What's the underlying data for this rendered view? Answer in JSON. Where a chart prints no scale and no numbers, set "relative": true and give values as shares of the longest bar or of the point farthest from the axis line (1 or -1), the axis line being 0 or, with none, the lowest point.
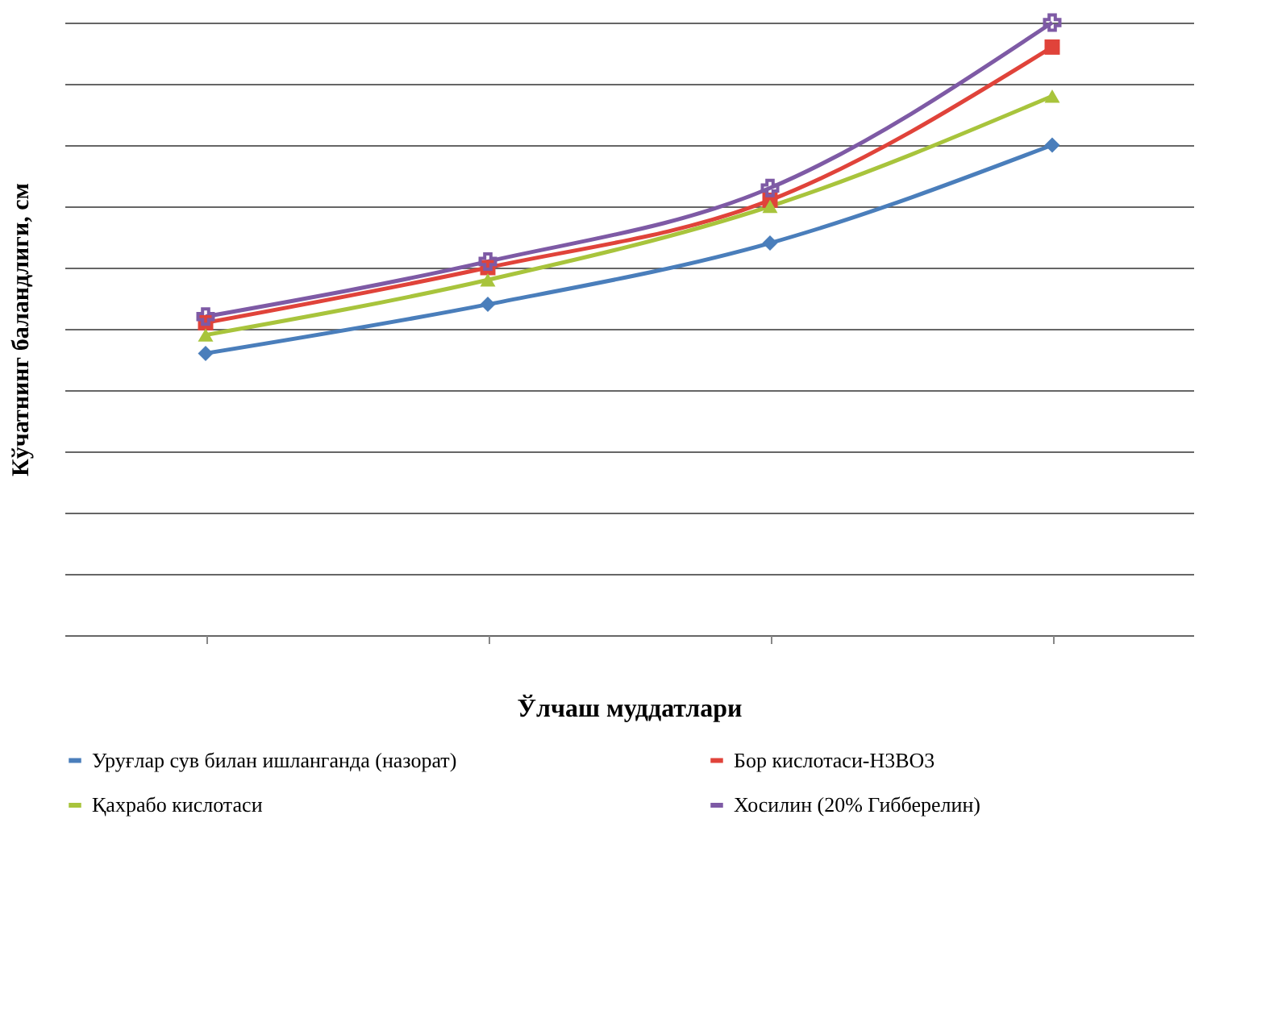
{
  "chart_data": {
    "type": "line",
    "relative": true,
    "xlabel": "Ўлчаш муддатлари",
    "ylabel": "Кўчатнинг баландлиги, см",
    "categories": [
      null,
      null,
      null,
      null
    ],
    "grid": "y",
    "legend": "bottom",
    "line_style": "solid",
    "series": [
      {
        "name": "Уруғлар сув билан ишланганда (назорат)",
        "color": "#4a7ebb",
        "marker": "diamond",
        "values": [
          0.46,
          0.54,
          0.64,
          0.8
        ]
      },
      {
        "name": "Бор кислотаси-H3BO3",
        "color": "#e0433a",
        "marker": "square",
        "values": [
          0.51,
          0.6,
          0.71,
          0.96
        ]
      },
      {
        "name": "Қахрабо кислотаси",
        "color": "#a8c43c",
        "marker": "triangle",
        "values": [
          0.49,
          0.58,
          0.7,
          0.88
        ]
      },
      {
        "name": "Хосилин (20% Гибберелин)",
        "color": "#7e5aa5",
        "marker": "cross",
        "values": [
          0.52,
          0.61,
          0.73,
          1
        ]
      }
    ]
  }
}
